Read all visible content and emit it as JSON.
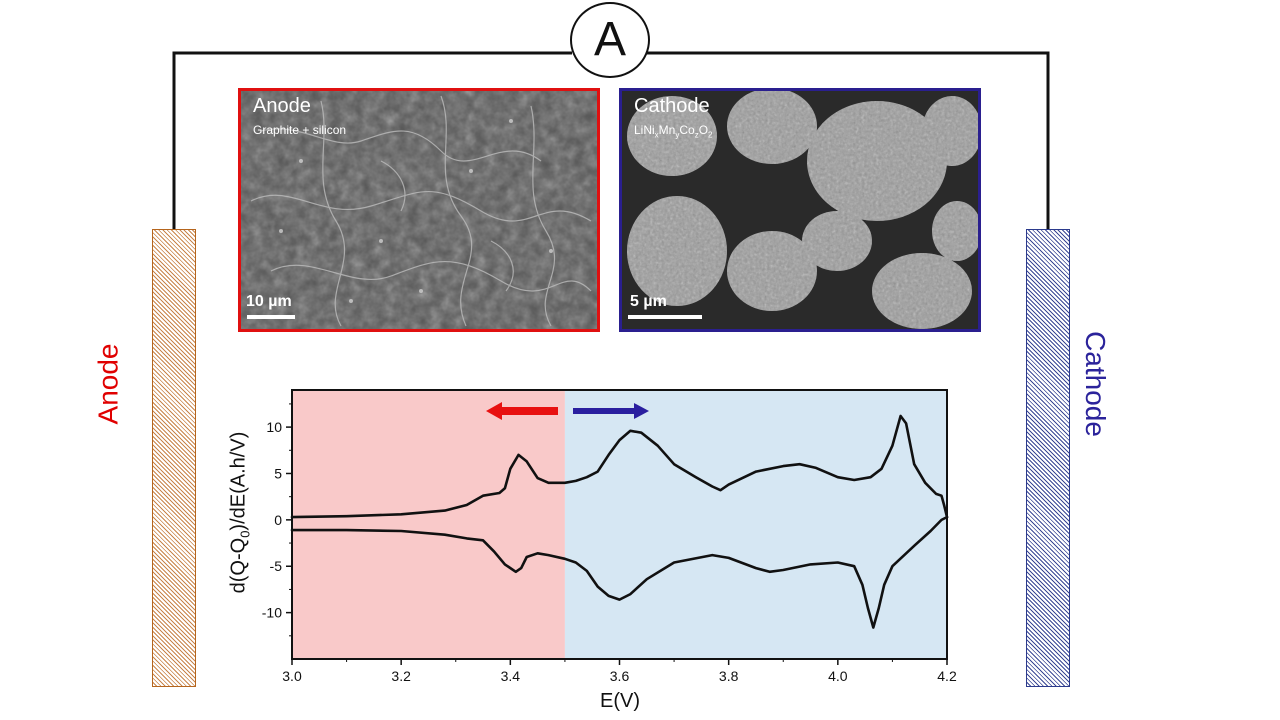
{
  "meter": {
    "label": "A"
  },
  "electrodes": {
    "anode_label": "Anode",
    "cathode_label": "Cathode"
  },
  "sem": {
    "anode": {
      "title": "Anode",
      "subtitle": "Graphite + silicon",
      "scale": "10 µm"
    },
    "cathode": {
      "title": "Cathode",
      "subtitle_parts": [
        "LiNi",
        "x",
        "Mn",
        "y",
        "Co",
        "z",
        "O",
        "2"
      ],
      "scale": "5 µm"
    }
  },
  "chart_data": {
    "type": "line",
    "xlabel": "E(V)",
    "ylabel": {
      "main": "d(Q-Q",
      "sub": "0",
      "tail": ")/dE(A.h/V)"
    },
    "xlim": [
      3.0,
      4.2
    ],
    "ylim": [
      -15,
      14
    ],
    "xticks": [
      3.0,
      3.2,
      3.4,
      3.6,
      3.8,
      4.0,
      4.2
    ],
    "yticks": [
      10,
      5,
      0,
      -5,
      -10
    ],
    "regions": [
      {
        "range": [
          3.0,
          3.5
        ],
        "color": "#f9c9c9",
        "side": "anode"
      },
      {
        "range": [
          3.5,
          4.2
        ],
        "color": "#d6e7f3",
        "side": "cathode"
      }
    ],
    "arrows": [
      {
        "direction": "left",
        "color": "#e81010"
      },
      {
        "direction": "right",
        "color": "#2a1f9f"
      }
    ],
    "series": [
      {
        "values": [
          [
            3.0,
            0.3
          ],
          [
            3.1,
            0.4
          ],
          [
            3.2,
            0.6
          ],
          [
            3.28,
            1.0
          ],
          [
            3.32,
            1.6
          ],
          [
            3.35,
            2.6
          ],
          [
            3.38,
            2.9
          ],
          [
            3.39,
            3.4
          ],
          [
            3.4,
            5.5
          ],
          [
            3.415,
            7.0
          ],
          [
            3.43,
            6.3
          ],
          [
            3.45,
            4.5
          ],
          [
            3.47,
            4.0
          ],
          [
            3.5,
            4.0
          ],
          [
            3.52,
            4.2
          ],
          [
            3.54,
            4.6
          ],
          [
            3.56,
            5.2
          ],
          [
            3.58,
            7.0
          ],
          [
            3.6,
            8.6
          ],
          [
            3.62,
            9.6
          ],
          [
            3.64,
            9.4
          ],
          [
            3.67,
            8.0
          ],
          [
            3.7,
            6.0
          ],
          [
            3.74,
            4.6
          ],
          [
            3.77,
            3.6
          ],
          [
            3.785,
            3.2
          ],
          [
            3.8,
            3.8
          ],
          [
            3.85,
            5.2
          ],
          [
            3.9,
            5.8
          ],
          [
            3.93,
            6.0
          ],
          [
            3.96,
            5.6
          ],
          [
            4.0,
            4.6
          ],
          [
            4.03,
            4.3
          ],
          [
            4.06,
            4.6
          ],
          [
            4.08,
            5.5
          ],
          [
            4.1,
            8.0
          ],
          [
            4.115,
            11.2
          ],
          [
            4.125,
            10.4
          ],
          [
            4.14,
            6.0
          ],
          [
            4.16,
            4.0
          ],
          [
            4.18,
            2.8
          ],
          [
            4.19,
            2.6
          ],
          [
            4.195,
            1.5
          ],
          [
            4.2,
            0.3
          ]
        ]
      },
      {
        "values": [
          [
            4.2,
            0.3
          ],
          [
            4.19,
            0.0
          ],
          [
            4.17,
            -1.2
          ],
          [
            4.14,
            -2.8
          ],
          [
            4.1,
            -5.0
          ],
          [
            4.085,
            -7.0
          ],
          [
            4.075,
            -9.5
          ],
          [
            4.065,
            -11.6
          ],
          [
            4.055,
            -9.5
          ],
          [
            4.045,
            -7.0
          ],
          [
            4.03,
            -5.0
          ],
          [
            4.0,
            -4.6
          ],
          [
            3.95,
            -4.8
          ],
          [
            3.9,
            -5.4
          ],
          [
            3.875,
            -5.6
          ],
          [
            3.85,
            -5.2
          ],
          [
            3.8,
            -4.1
          ],
          [
            3.77,
            -3.8
          ],
          [
            3.7,
            -4.6
          ],
          [
            3.65,
            -6.4
          ],
          [
            3.62,
            -8.0
          ],
          [
            3.6,
            -8.6
          ],
          [
            3.58,
            -8.2
          ],
          [
            3.56,
            -7.2
          ],
          [
            3.54,
            -5.5
          ],
          [
            3.52,
            -4.6
          ],
          [
            3.5,
            -4.2
          ],
          [
            3.47,
            -3.8
          ],
          [
            3.45,
            -3.6
          ],
          [
            3.43,
            -4.0
          ],
          [
            3.42,
            -5.2
          ],
          [
            3.41,
            -5.6
          ],
          [
            3.39,
            -4.8
          ],
          [
            3.37,
            -3.4
          ],
          [
            3.35,
            -2.2
          ],
          [
            3.32,
            -2.0
          ],
          [
            3.28,
            -1.6
          ],
          [
            3.2,
            -1.2
          ],
          [
            3.1,
            -1.1
          ],
          [
            3.0,
            -1.1
          ]
        ]
      }
    ]
  },
  "colors": {
    "anode_red": "#e01010",
    "cathode_blue": "#2a1f8f",
    "anode_label": "#e00000",
    "cathode_label": "#2b239b",
    "line": "#111111"
  },
  "icons": {
    "meter": "ammeter-icon"
  }
}
